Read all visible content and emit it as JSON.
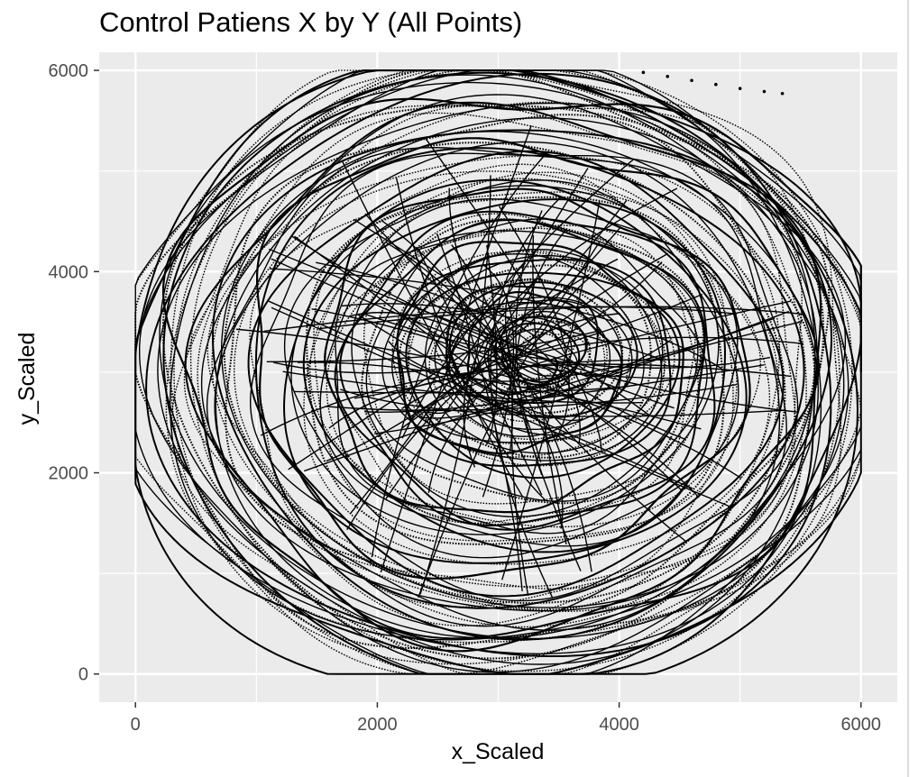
{
  "chart_data": {
    "type": "scatter",
    "title": "Control Patiens X by Y (All Points)",
    "xlabel": "x_Scaled",
    "ylabel": "y_Scaled",
    "xlim": [
      -300,
      6300
    ],
    "ylim": [
      -280,
      6180
    ],
    "x_ticks": [
      0,
      2000,
      4000,
      6000
    ],
    "x_tick_labels": [
      "0",
      "2000",
      "4000",
      "6000"
    ],
    "y_ticks": [
      0,
      2000,
      4000,
      6000
    ],
    "y_tick_labels": [
      "0",
      "2000",
      "4000",
      "6000"
    ],
    "grid": true,
    "legend": "none",
    "colors": {
      "panel_background": "#ebebeb",
      "grid": "#ffffff",
      "points": "#000000"
    },
    "series": [
      {
        "points_style": "dense traces of small points forming concentric loops",
        "spiral": {
          "center": [
            3000,
            3000
          ],
          "outer_radius_x": 3000,
          "outer_radius_y": 3000,
          "turns": 5
        },
        "loops": [
          {
            "cx": 3000,
            "cy": 3000,
            "rx": 2950,
            "ry": 2950
          },
          {
            "cx": 3050,
            "cy": 3000,
            "rx": 2800,
            "ry": 2850
          },
          {
            "cx": 3100,
            "cy": 3050,
            "rx": 2500,
            "ry": 2500
          },
          {
            "cx": 3100,
            "cy": 3000,
            "rx": 2200,
            "ry": 2200
          },
          {
            "cx": 3150,
            "cy": 3050,
            "rx": 1800,
            "ry": 1800
          },
          {
            "cx": 3200,
            "cy": 3050,
            "rx": 1450,
            "ry": 1450
          },
          {
            "cx": 3250,
            "cy": 3100,
            "rx": 1100,
            "ry": 1000
          },
          {
            "cx": 3300,
            "cy": 3150,
            "rx": 700,
            "ry": 650
          },
          {
            "cx": 3350,
            "cy": 3200,
            "rx": 350,
            "ry": 320
          }
        ],
        "stray_points": [
          {
            "x": 4200,
            "y": 5980
          },
          {
            "x": 4400,
            "y": 5940
          },
          {
            "x": 4600,
            "y": 5900
          },
          {
            "x": 4800,
            "y": 5860
          },
          {
            "x": 5000,
            "y": 5820
          },
          {
            "x": 5200,
            "y": 5790
          },
          {
            "x": 5350,
            "y": 5770
          }
        ]
      }
    ]
  }
}
